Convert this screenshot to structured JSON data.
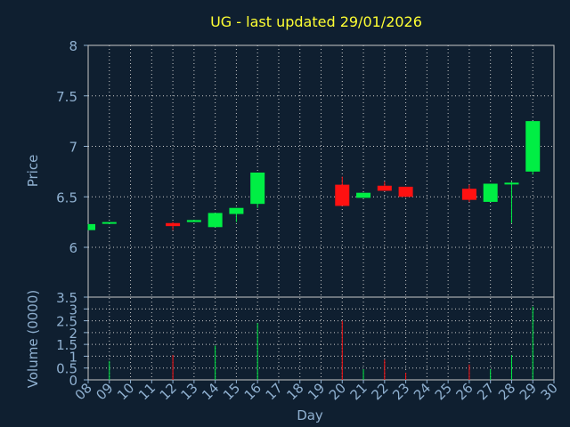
{
  "chart_data": {
    "type": "candlestick",
    "title": "UG - last updated 29/01/2026",
    "xlabel": "Day",
    "categories": [
      "08",
      "09",
      "10",
      "11",
      "12",
      "13",
      "14",
      "15",
      "16",
      "17",
      "18",
      "19",
      "20",
      "21",
      "22",
      "23",
      "24",
      "25",
      "26",
      "27",
      "28",
      "29",
      "30"
    ],
    "price_panel": {
      "ylabel": "Price",
      "ylim": [
        6,
        8
      ],
      "yticks": [
        "6",
        "6.5",
        "7",
        "7.5",
        "8"
      ],
      "candles": [
        {
          "day": "08",
          "open": 6.17,
          "high": 6.23,
          "low": 6.17,
          "close": 6.23
        },
        {
          "day": "09",
          "open": 6.24,
          "high": 6.25,
          "low": 6.24,
          "close": 6.25
        },
        {
          "day": "12",
          "open": 6.24,
          "high": 6.25,
          "low": 6.17,
          "close": 6.21
        },
        {
          "day": "13",
          "open": 6.25,
          "high": 6.27,
          "low": 6.25,
          "close": 6.27
        },
        {
          "day": "14",
          "open": 6.2,
          "high": 6.34,
          "low": 6.2,
          "close": 6.34
        },
        {
          "day": "15",
          "open": 6.33,
          "high": 6.39,
          "low": 6.25,
          "close": 6.39
        },
        {
          "day": "16",
          "open": 6.43,
          "high": 6.74,
          "low": 6.39,
          "close": 6.74
        },
        {
          "day": "20",
          "open": 6.62,
          "high": 6.7,
          "low": 6.41,
          "close": 6.41
        },
        {
          "day": "21",
          "open": 6.49,
          "high": 6.54,
          "low": 6.49,
          "close": 6.54
        },
        {
          "day": "22",
          "open": 6.61,
          "high": 6.65,
          "low": 6.56,
          "close": 6.56
        },
        {
          "day": "23",
          "open": 6.6,
          "high": 6.6,
          "low": 6.5,
          "close": 6.5
        },
        {
          "day": "26",
          "open": 6.58,
          "high": 6.62,
          "low": 6.45,
          "close": 6.47
        },
        {
          "day": "27",
          "open": 6.45,
          "high": 6.63,
          "low": 6.45,
          "close": 6.63
        },
        {
          "day": "28",
          "open": 6.63,
          "high": 6.65,
          "low": 6.24,
          "close": 6.64
        },
        {
          "day": "29",
          "open": 6.75,
          "high": 7.25,
          "low": 6.72,
          "close": 7.25
        }
      ]
    },
    "volume_panel": {
      "ylabel": "Volume (0000)",
      "ylim": [
        0,
        3.5
      ],
      "yticks": [
        "0",
        "0.5",
        "1",
        "1.5",
        "2",
        "2.5",
        "3",
        "3.5"
      ],
      "bars": [
        {
          "day": "09",
          "value": 0.8,
          "direction": "up"
        },
        {
          "day": "12",
          "value": 1.05,
          "direction": "down"
        },
        {
          "day": "14",
          "value": 1.45,
          "direction": "up"
        },
        {
          "day": "16",
          "value": 2.4,
          "direction": "up"
        },
        {
          "day": "20",
          "value": 2.5,
          "direction": "down"
        },
        {
          "day": "21",
          "value": 0.45,
          "direction": "up"
        },
        {
          "day": "22",
          "value": 0.85,
          "direction": "down"
        },
        {
          "day": "23",
          "value": 0.3,
          "direction": "down"
        },
        {
          "day": "26",
          "value": 0.65,
          "direction": "down"
        },
        {
          "day": "27",
          "value": 0.45,
          "direction": "up"
        },
        {
          "day": "28",
          "value": 1.05,
          "direction": "up"
        },
        {
          "day": "29",
          "value": 3.1,
          "direction": "up"
        }
      ]
    },
    "grid": true,
    "colors": {
      "background": "#0f1f30",
      "up": "#00ee44",
      "down": "#ff1111",
      "title": "#ffff33",
      "axis_text": "#8fb0d0",
      "grid": "#c8c8c8"
    }
  }
}
